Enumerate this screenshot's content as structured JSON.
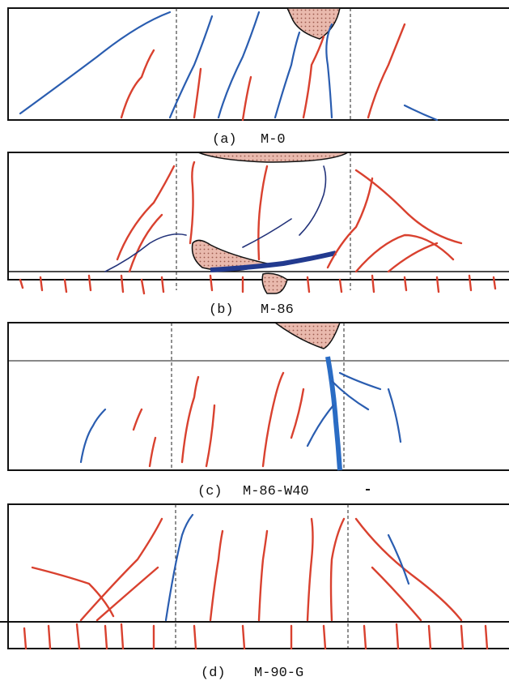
{
  "figures": [
    {
      "label": "(a)",
      "name": "M-0"
    },
    {
      "label": "(b)",
      "name": "M-86"
    },
    {
      "label": "(c)",
      "name": "M-86-W40"
    },
    {
      "label": "(d)",
      "name": "M-90-G"
    }
  ]
}
